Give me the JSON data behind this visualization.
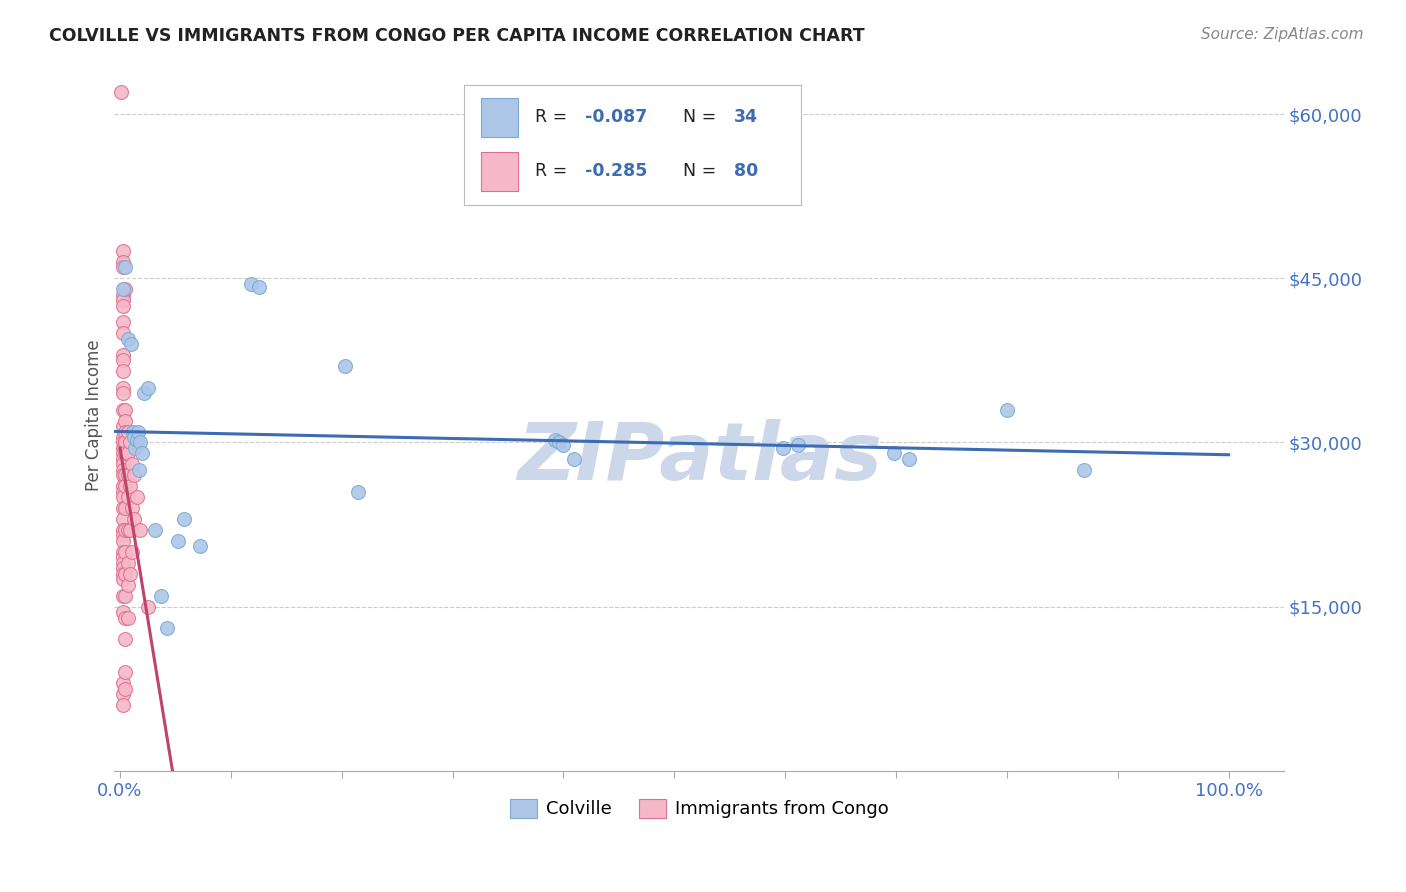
{
  "title": "COLVILLE VS IMMIGRANTS FROM CONGO PER CAPITA INCOME CORRELATION CHART",
  "source": "Source: ZipAtlas.com",
  "ylabel": "Per Capita Income",
  "yticks": [
    0,
    15000,
    30000,
    45000,
    60000
  ],
  "ytick_labels": [
    "",
    "$15,000",
    "$30,000",
    "$45,000",
    "$60,000"
  ],
  "ylim": [
    0,
    65000
  ],
  "xlim": [
    -0.005,
    1.05
  ],
  "background_color": "#ffffff",
  "grid_color": "#cccccc",
  "colville_color": "#adc6e8",
  "colville_edge_color": "#7baad4",
  "congo_color": "#f5b8c8",
  "congo_edge_color": "#e07090",
  "trend_colville_color": "#3d6cb5",
  "trend_congo_color": "#c0446a",
  "trend_colville_end_color": "#4472c4",
  "watermark_color": "#ccd8ea",
  "legend_R_colville": "-0.087",
  "legend_N_colville": "34",
  "legend_R_congo": "-0.285",
  "legend_N_congo": "80",
  "ytick_color": "#4472c4",
  "xtick_color": "#4472c4",
  "colville_points": [
    [
      0.003,
      44000
    ],
    [
      0.005,
      46000
    ],
    [
      0.007,
      39500
    ],
    [
      0.01,
      39000
    ],
    [
      0.012,
      31000
    ],
    [
      0.013,
      30500
    ],
    [
      0.014,
      29500
    ],
    [
      0.015,
      30200
    ],
    [
      0.016,
      31000
    ],
    [
      0.017,
      27500
    ],
    [
      0.018,
      30000
    ],
    [
      0.02,
      29000
    ],
    [
      0.022,
      34500
    ],
    [
      0.025,
      35000
    ],
    [
      0.032,
      22000
    ],
    [
      0.037,
      16000
    ],
    [
      0.042,
      13000
    ],
    [
      0.052,
      21000
    ],
    [
      0.058,
      23000
    ],
    [
      0.072,
      20500
    ],
    [
      0.118,
      44500
    ],
    [
      0.125,
      44200
    ],
    [
      0.203,
      37000
    ],
    [
      0.215,
      25500
    ],
    [
      0.392,
      30200
    ],
    [
      0.396,
      30000
    ],
    [
      0.4,
      29800
    ],
    [
      0.41,
      28500
    ],
    [
      0.598,
      29500
    ],
    [
      0.612,
      29800
    ],
    [
      0.698,
      29000
    ],
    [
      0.712,
      28500
    ],
    [
      0.8,
      33000
    ],
    [
      0.87,
      27500
    ]
  ],
  "congo_points": [
    [
      0.001,
      62000
    ],
    [
      0.003,
      47500
    ],
    [
      0.003,
      46500
    ],
    [
      0.003,
      46000
    ],
    [
      0.003,
      43500
    ],
    [
      0.003,
      43000
    ],
    [
      0.003,
      42500
    ],
    [
      0.003,
      41000
    ],
    [
      0.003,
      40000
    ],
    [
      0.003,
      38000
    ],
    [
      0.003,
      37500
    ],
    [
      0.003,
      36500
    ],
    [
      0.003,
      35000
    ],
    [
      0.003,
      34500
    ],
    [
      0.003,
      33000
    ],
    [
      0.003,
      31500
    ],
    [
      0.003,
      30500
    ],
    [
      0.003,
      30000
    ],
    [
      0.003,
      29500
    ],
    [
      0.003,
      29000
    ],
    [
      0.003,
      28500
    ],
    [
      0.003,
      28000
    ],
    [
      0.003,
      27500
    ],
    [
      0.003,
      27000
    ],
    [
      0.003,
      26000
    ],
    [
      0.003,
      25500
    ],
    [
      0.003,
      25000
    ],
    [
      0.003,
      24000
    ],
    [
      0.003,
      23000
    ],
    [
      0.003,
      22000
    ],
    [
      0.003,
      21500
    ],
    [
      0.003,
      21000
    ],
    [
      0.003,
      20000
    ],
    [
      0.003,
      19500
    ],
    [
      0.003,
      19000
    ],
    [
      0.003,
      18500
    ],
    [
      0.003,
      18000
    ],
    [
      0.003,
      17500
    ],
    [
      0.003,
      16000
    ],
    [
      0.003,
      14500
    ],
    [
      0.003,
      8000
    ],
    [
      0.003,
      7000
    ],
    [
      0.003,
      6000
    ],
    [
      0.005,
      44000
    ],
    [
      0.005,
      33000
    ],
    [
      0.005,
      32000
    ],
    [
      0.005,
      31000
    ],
    [
      0.005,
      30000
    ],
    [
      0.005,
      29000
    ],
    [
      0.005,
      27000
    ],
    [
      0.005,
      26000
    ],
    [
      0.005,
      24000
    ],
    [
      0.005,
      22000
    ],
    [
      0.005,
      20000
    ],
    [
      0.005,
      18000
    ],
    [
      0.005,
      16000
    ],
    [
      0.005,
      14000
    ],
    [
      0.005,
      12000
    ],
    [
      0.005,
      9000
    ],
    [
      0.005,
      7500
    ],
    [
      0.007,
      31000
    ],
    [
      0.007,
      29000
    ],
    [
      0.007,
      27000
    ],
    [
      0.007,
      25000
    ],
    [
      0.007,
      22000
    ],
    [
      0.007,
      19000
    ],
    [
      0.007,
      17000
    ],
    [
      0.007,
      14000
    ],
    [
      0.009,
      30000
    ],
    [
      0.009,
      26000
    ],
    [
      0.009,
      22000
    ],
    [
      0.009,
      18000
    ],
    [
      0.011,
      28000
    ],
    [
      0.011,
      24000
    ],
    [
      0.011,
      20000
    ],
    [
      0.013,
      27000
    ],
    [
      0.013,
      23000
    ],
    [
      0.015,
      25000
    ],
    [
      0.018,
      22000
    ],
    [
      0.025,
      15000
    ]
  ]
}
